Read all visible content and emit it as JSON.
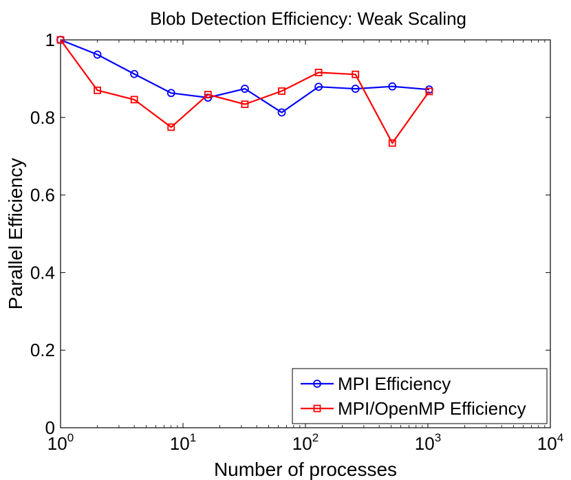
{
  "chart_data": {
    "type": "line",
    "title": "Blob Detection Efficiency: Weak Scaling",
    "xlabel": "Number of processes",
    "ylabel": "Parallel Efficiency",
    "xscale": "log",
    "xlim": [
      1,
      10000
    ],
    "ylim": [
      0,
      1
    ],
    "x_ticks": [
      {
        "value": 1,
        "base": "10",
        "exp": "0"
      },
      {
        "value": 10,
        "base": "10",
        "exp": "1"
      },
      {
        "value": 100,
        "base": "10",
        "exp": "2"
      },
      {
        "value": 1000,
        "base": "10",
        "exp": "3"
      },
      {
        "value": 10000,
        "base": "10",
        "exp": "4"
      }
    ],
    "y_ticks": [
      {
        "value": 0,
        "label": "0"
      },
      {
        "value": 0.2,
        "label": "0.2"
      },
      {
        "value": 0.4,
        "label": "0.4"
      },
      {
        "value": 0.6,
        "label": "0.6"
      },
      {
        "value": 0.8,
        "label": "0.8"
      },
      {
        "value": 1,
        "label": "1"
      }
    ],
    "grid": false,
    "legend_position": "bottom-right",
    "series": [
      {
        "name": "MPI Efficiency",
        "color": "#0000ff",
        "marker": "circle",
        "x": [
          1,
          2,
          4,
          8,
          16,
          32,
          64,
          128,
          256,
          512,
          1024
        ],
        "values": [
          1.0,
          0.962,
          0.912,
          0.863,
          0.851,
          0.874,
          0.813,
          0.879,
          0.874,
          0.88,
          0.872
        ]
      },
      {
        "name": "MPI/OpenMP Efficiency",
        "color": "#ff0000",
        "marker": "square",
        "x": [
          1,
          2,
          4,
          8,
          16,
          32,
          64,
          128,
          256,
          512,
          1024
        ],
        "values": [
          1.0,
          0.87,
          0.846,
          0.775,
          0.859,
          0.834,
          0.868,
          0.916,
          0.911,
          0.734,
          0.867
        ]
      }
    ]
  }
}
